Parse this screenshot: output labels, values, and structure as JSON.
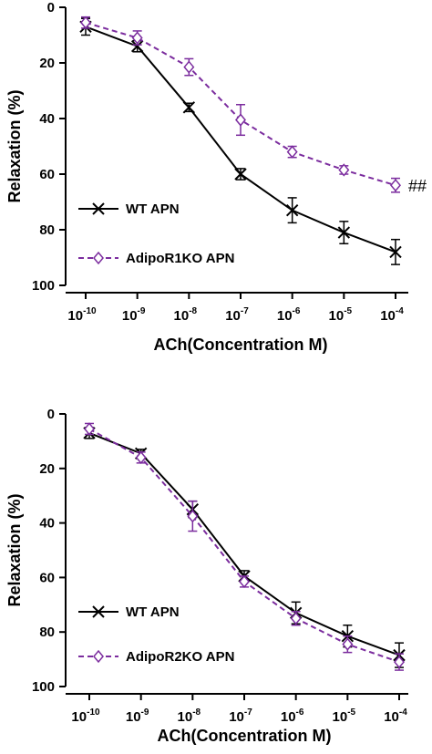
{
  "chart_data": [
    {
      "type": "line",
      "ylabel": "Relaxation (%)",
      "xlabel": "ACh(Concentration M)",
      "ylim": [
        0,
        100
      ],
      "y_inverted": true,
      "y_ticks": [
        "0",
        "20",
        "40",
        "60",
        "80",
        "100"
      ],
      "x_scale": "log",
      "x_ticks": [
        {
          "base": "10",
          "exp": "-10"
        },
        {
          "base": "10",
          "exp": "-9"
        },
        {
          "base": "10",
          "exp": "-8"
        },
        {
          "base": "10",
          "exp": "-7"
        },
        {
          "base": "10",
          "exp": "-6"
        },
        {
          "base": "10",
          "exp": "-5"
        },
        {
          "base": "10",
          "exp": "-4"
        }
      ],
      "x": [
        1e-10,
        1e-09,
        1e-08,
        1e-07,
        1e-06,
        1e-05,
        0.0001
      ],
      "legend_position": "bottom-left",
      "series": [
        {
          "name": "WT APN",
          "marker": "x",
          "line": "solid",
          "color": "#000000",
          "values": [
            7,
            14,
            36,
            60,
            73,
            81,
            88
          ],
          "errors": [
            3,
            2,
            1.5,
            2,
            4.5,
            4,
            4.5
          ]
        },
        {
          "name": "AdipoR1KO APN",
          "marker": "diamond",
          "line": "dashed",
          "color": "#7b2c9e",
          "values": [
            5.5,
            11,
            21.5,
            40.5,
            52,
            58.5,
            64
          ],
          "errors": [
            2,
            2.5,
            3,
            5.5,
            2,
            1.5,
            2.5
          ]
        }
      ],
      "annotation": "##"
    },
    {
      "type": "line",
      "ylabel": "Relaxation (%)",
      "xlabel": "ACh(Concentration M)",
      "ylim": [
        0,
        100
      ],
      "y_inverted": true,
      "y_ticks": [
        "0",
        "20",
        "40",
        "60",
        "80",
        "100"
      ],
      "x_scale": "log",
      "x_ticks": [
        {
          "base": "10",
          "exp": "-10"
        },
        {
          "base": "10",
          "exp": "-9"
        },
        {
          "base": "10",
          "exp": "-8"
        },
        {
          "base": "10",
          "exp": "-7"
        },
        {
          "base": "10",
          "exp": "-6"
        },
        {
          "base": "10",
          "exp": "-5"
        },
        {
          "base": "10",
          "exp": "-4"
        }
      ],
      "x": [
        1e-10,
        1e-09,
        1e-08,
        1e-07,
        1e-06,
        1e-05,
        0.0001
      ],
      "legend_position": "bottom-left",
      "series": [
        {
          "name": "WT APN",
          "marker": "x",
          "line": "solid",
          "color": "#000000",
          "values": [
            7,
            14.5,
            35,
            59.5,
            73,
            81.5,
            88.5
          ],
          "errors": [
            2,
            1.5,
            3,
            2,
            4,
            4,
            4.5
          ]
        },
        {
          "name": "AdipoR2KO APN",
          "marker": "diamond",
          "line": "dashed",
          "color": "#7b2c9e",
          "values": [
            5.5,
            16,
            37.5,
            61.5,
            75,
            84.5,
            91
          ],
          "errors": [
            2,
            2,
            5.5,
            2,
            2.5,
            3,
            3
          ]
        }
      ]
    }
  ]
}
